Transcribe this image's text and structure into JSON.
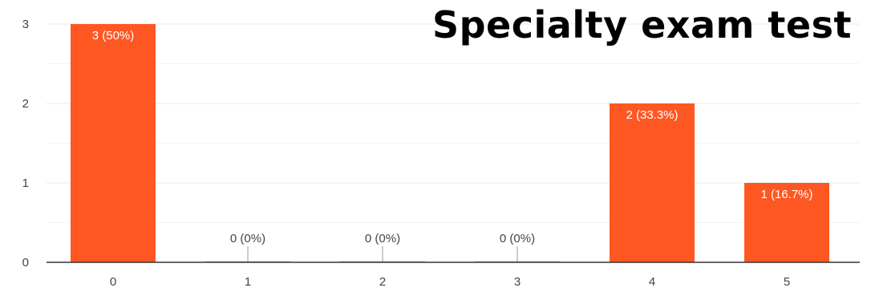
{
  "chart_data": {
    "type": "bar",
    "title": "Specialty exam test",
    "categories": [
      "0",
      "1",
      "2",
      "3",
      "4",
      "5"
    ],
    "values": [
      3,
      0,
      0,
      0,
      2,
      1
    ],
    "data_labels": [
      "3 (50%)",
      "0 (0%)",
      "0 (0%)",
      "0 (0%)",
      "2 (33.3%)",
      "1 (16.7%)"
    ],
    "ylim": [
      0,
      3
    ],
    "yticks": [
      "0",
      "1",
      "2",
      "3"
    ],
    "grid": true,
    "bar_color": "#ff5722",
    "gridline_color": "#e8e8e8"
  }
}
